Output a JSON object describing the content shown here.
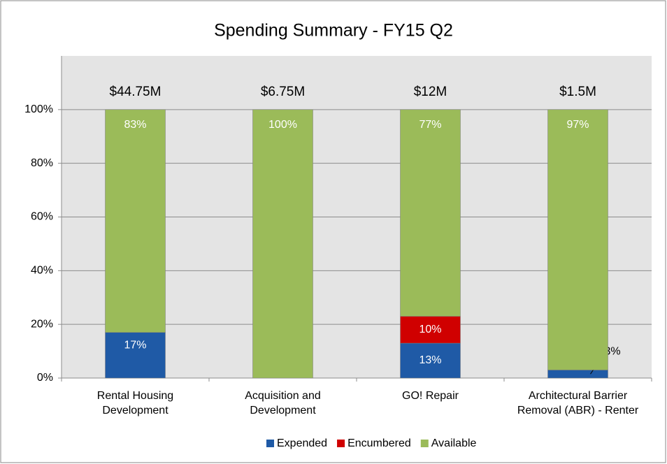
{
  "chart_data": {
    "type": "stacked_bar",
    "title": "Spending Summary - FY15 Q2",
    "categories": [
      "Rental Housing Development",
      "Acquisition and Development",
      "GO! Repair",
      "Architectural Barrier Removal (ABR) - Renter"
    ],
    "annotations": [
      "$44.75M",
      "$6.75M",
      "$12M",
      "$1.5M"
    ],
    "series": [
      {
        "name": "Expended",
        "color": "#1f5aa6",
        "values": [
          17,
          0,
          13,
          3
        ],
        "value_labels": [
          "17%",
          null,
          "13%",
          "3%"
        ]
      },
      {
        "name": "Encumbered",
        "color": "#d00000",
        "values": [
          0,
          0,
          10,
          0
        ],
        "value_labels": [
          null,
          null,
          "10%",
          null
        ]
      },
      {
        "name": "Available",
        "color": "#9bbb59",
        "values": [
          83,
          100,
          77,
          97
        ],
        "value_labels": [
          "83%",
          "100%",
          "77%",
          "97%"
        ]
      }
    ],
    "ylim": [
      0,
      120
    ],
    "yticks": [
      {
        "value": 0,
        "label": "0%"
      },
      {
        "value": 20,
        "label": "20%"
      },
      {
        "value": 40,
        "label": "40%"
      },
      {
        "value": 60,
        "label": "60%"
      },
      {
        "value": 80,
        "label": "80%"
      },
      {
        "value": 100,
        "label": "100%"
      }
    ],
    "grid": true,
    "legend": "bottom"
  }
}
